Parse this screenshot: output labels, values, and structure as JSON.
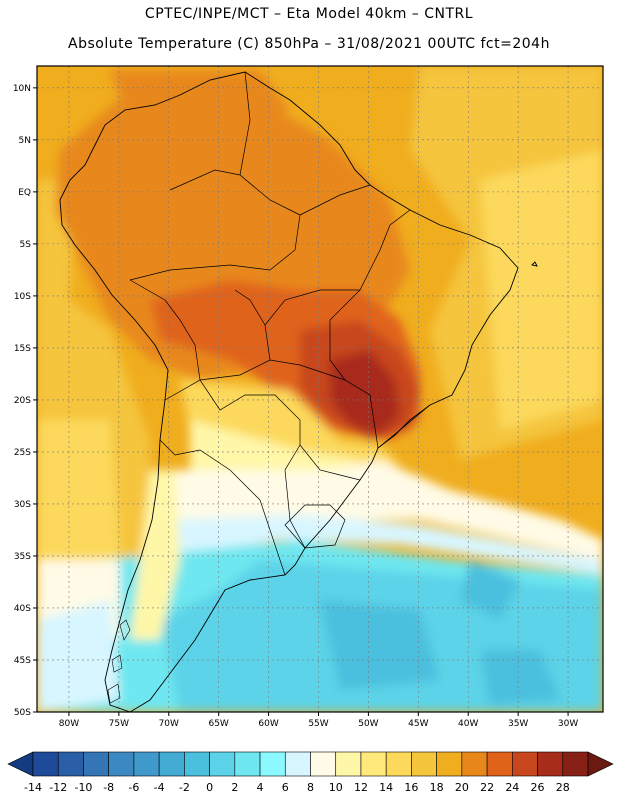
{
  "header": {
    "line1": "CPTEC/INPE/MCT –  Eta Model 40km – CNTRL",
    "line2": "Absolute Temperature (C) 850hPa – 31/08/2021 00UTC fct=204h"
  },
  "map": {
    "lat_labels": [
      "10N",
      "5N",
      "EQ",
      "5S",
      "10S",
      "15S",
      "20S",
      "25S",
      "30S",
      "35S",
      "40S",
      "45S",
      "50S"
    ],
    "lon_labels": [
      "80W",
      "75W",
      "70W",
      "65W",
      "60W",
      "55W",
      "50W",
      "45W",
      "40W",
      "35W",
      "30W"
    ],
    "lat_values": [
      10,
      5,
      0,
      -5,
      -10,
      -15,
      -20,
      -25,
      -30,
      -35,
      -40,
      -45,
      -50
    ],
    "lon_values": [
      -80,
      -75,
      -70,
      -65,
      -60,
      -55,
      -50,
      -45,
      -40,
      -35,
      -30
    ],
    "extent": {
      "lon_min": -83.2,
      "lon_max": -26.5,
      "lat_min": -50,
      "lat_max": 12.1
    }
  },
  "colorbar": {
    "labels": [
      "-14",
      "-12",
      "-10",
      "-8",
      "-6",
      "-4",
      "-2",
      "0",
      "2",
      "4",
      "6",
      "8",
      "10",
      "12",
      "14",
      "16",
      "18",
      "20",
      "22",
      "24",
      "26",
      "28"
    ],
    "colors": [
      "#1e4a99",
      "#2a5fa8",
      "#3475b6",
      "#3c88c2",
      "#3f9acb",
      "#42acd4",
      "#4bc0de",
      "#5cd3e8",
      "#6ee7f0",
      "#8cf8ff",
      "#d8f6ff",
      "#fffbe6",
      "#fff7a8",
      "#ffe97a",
      "#fcd95b",
      "#f5c53c",
      "#f0ad1e",
      "#e8881a",
      "#e0631a",
      "#c8461c",
      "#a82c1a",
      "#872016"
    ],
    "low_color": "#143a80",
    "high_color": "#6b1a12"
  }
}
